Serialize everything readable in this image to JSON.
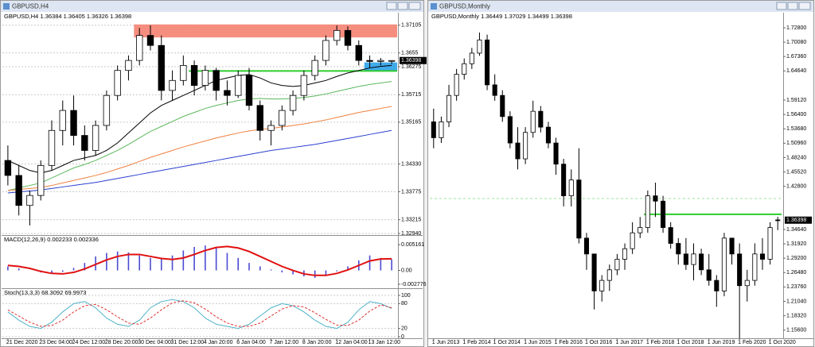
{
  "chart_data": [
    {
      "type": "candlestick",
      "title": "GBPUSD,H4",
      "categories": [
        "21 Dec 2020",
        null,
        null,
        "23 Dec 04:00",
        null,
        null,
        "24 Dec 12:00",
        null,
        null,
        "28 Dec 20:00",
        null,
        null,
        "30 Dec 04:00",
        null,
        null,
        "31 Dec 12:00",
        null,
        null,
        "4 Jan 20:00",
        null,
        null,
        "6 Jan 04:00",
        null,
        null,
        "7 Jan 12:00",
        null,
        null,
        "8 Jan 20:00",
        null,
        null,
        "12 Jan 04:00",
        null,
        null,
        "13 Jan 12:00",
        null,
        null
      ],
      "candles": [
        [
          1.344,
          1.347,
          1.339,
          1.341
        ],
        [
          1.341,
          1.343,
          1.333,
          1.335
        ],
        [
          1.335,
          1.338,
          1.331,
          1.337
        ],
        [
          1.337,
          1.344,
          1.336,
          1.343
        ],
        [
          1.343,
          1.352,
          1.342,
          1.35
        ],
        [
          1.35,
          1.356,
          1.347,
          1.354
        ],
        [
          1.354,
          1.357,
          1.347,
          1.349
        ],
        [
          1.349,
          1.351,
          1.344,
          1.346
        ],
        [
          1.346,
          1.352,
          1.345,
          1.351
        ],
        [
          1.351,
          1.358,
          1.35,
          1.357
        ],
        [
          1.357,
          1.363,
          1.356,
          1.362
        ],
        [
          1.362,
          1.365,
          1.36,
          1.364
        ],
        [
          1.364,
          1.3705,
          1.363,
          1.369
        ],
        [
          1.369,
          1.371,
          1.366,
          1.367
        ],
        [
          1.367,
          1.369,
          1.356,
          1.358
        ],
        [
          1.358,
          1.362,
          1.356,
          1.36
        ],
        [
          1.36,
          1.365,
          1.359,
          1.363
        ],
        [
          1.363,
          1.364,
          1.357,
          1.359
        ],
        [
          1.359,
          1.363,
          1.358,
          1.362
        ],
        [
          1.362,
          1.3625,
          1.356,
          1.358
        ],
        [
          1.358,
          1.36,
          1.355,
          1.357
        ],
        [
          1.357,
          1.362,
          1.3565,
          1.361
        ],
        [
          1.361,
          1.3625,
          1.354,
          1.355
        ],
        [
          1.355,
          1.356,
          1.348,
          1.35
        ],
        [
          1.35,
          1.352,
          1.347,
          1.351
        ],
        [
          1.351,
          1.355,
          1.35,
          1.354
        ],
        [
          1.354,
          1.358,
          1.353,
          1.357
        ],
        [
          1.357,
          1.362,
          1.356,
          1.361
        ],
        [
          1.361,
          1.365,
          1.36,
          1.364
        ],
        [
          1.364,
          1.369,
          1.363,
          1.368
        ],
        [
          1.368,
          1.371,
          1.367,
          1.37
        ],
        [
          1.37,
          1.3708,
          1.366,
          1.367
        ],
        [
          1.367,
          1.368,
          1.363,
          1.364
        ],
        [
          1.364,
          1.365,
          1.3625,
          1.3638
        ],
        [
          1.3638,
          1.3645,
          1.363,
          1.364
        ],
        [
          1.36384,
          1.36405,
          1.36326,
          1.36398
        ]
      ],
      "moving_averages": [
        {
          "color": "#000000",
          "values": [
            1.344,
            1.343,
            1.342,
            1.3415,
            1.342,
            1.343,
            1.344,
            1.3445,
            1.345,
            1.346,
            1.3475,
            1.3495,
            1.3515,
            1.3535,
            1.355,
            1.356,
            1.357,
            1.358,
            1.359,
            1.36,
            1.3605,
            1.361,
            1.3612,
            1.3605,
            1.3595,
            1.359,
            1.3588,
            1.359,
            1.3595,
            1.36,
            1.3608,
            1.3615,
            1.362,
            1.3625,
            1.3628,
            1.363
          ]
        },
        {
          "color": "#5cb85c",
          "values": [
            1.338,
            1.3385,
            1.339,
            1.3395,
            1.3405,
            1.3415,
            1.3425,
            1.3432,
            1.344,
            1.345,
            1.346,
            1.3472,
            1.3485,
            1.3498,
            1.3508,
            1.3518,
            1.3528,
            1.3536,
            1.3544,
            1.355,
            1.3555,
            1.356,
            1.3563,
            1.3564,
            1.3563,
            1.3563,
            1.3564,
            1.3566,
            1.3569,
            1.3573,
            1.3578,
            1.3583,
            1.3588,
            1.3592,
            1.3595,
            1.3598
          ]
        },
        {
          "color": "#f08040",
          "values": [
            1.338,
            1.3382,
            1.3384,
            1.3386,
            1.339,
            1.3395,
            1.34,
            1.3405,
            1.341,
            1.3416,
            1.3423,
            1.343,
            1.3438,
            1.3446,
            1.3453,
            1.346,
            1.3467,
            1.3473,
            1.3479,
            1.3485,
            1.349,
            1.3495,
            1.3499,
            1.3502,
            1.3504,
            1.3507,
            1.351,
            1.3513,
            1.3517,
            1.3521,
            1.3526,
            1.3531,
            1.3536,
            1.354,
            1.3544,
            1.3548
          ]
        },
        {
          "color": "#2b3fd1",
          "values": [
            1.3375,
            1.3377,
            1.3379,
            1.3381,
            1.3384,
            1.3387,
            1.339,
            1.3393,
            1.3396,
            1.34,
            1.3404,
            1.3408,
            1.3412,
            1.3416,
            1.342,
            1.3424,
            1.3428,
            1.3432,
            1.3436,
            1.344,
            1.3444,
            1.3448,
            1.3452,
            1.3456,
            1.346,
            1.3463,
            1.3466,
            1.3469,
            1.3472,
            1.3476,
            1.348,
            1.3484,
            1.3488,
            1.3492,
            1.3496,
            1.35
          ]
        }
      ],
      "zones": [
        {
          "from": 1.3686,
          "to": 1.3712,
          "color": "#f47a6a"
        },
        {
          "from": 1.3619,
          "to": 1.3636,
          "color": "#1e9be8"
        }
      ],
      "levels": [
        {
          "value": 1.3619,
          "color": "#2ecc2e"
        }
      ],
      "ylim": [
        1.3294,
        1.3718
      ],
      "yticks": [
        1.37105,
        1.3655,
        1.36275,
        1.35715,
        1.35165,
        {
          "value": 1.3433,
          "label": "1.34330"
        },
        1.33775,
        1.33215,
        {
          "value": 1.3294,
          "label": "1.32940"
        }
      ],
      "grid": true
    },
    {
      "type": "macd",
      "label": "MACD(12,26,9)",
      "histogram": [
        0.0008,
        0.0004,
        0,
        -0.0004,
        -0.0005,
        -0.0003,
        0.0005,
        0.0015,
        0.0028,
        0.0035,
        0.0038,
        0.0036,
        0.003,
        0.0025,
        0.0024,
        0.003,
        0.004,
        0.0047,
        0.005,
        0.0045,
        0.0035,
        0.0025,
        0.0015,
        0.0008,
        0.0002,
        -0.0004,
        -0.0008,
        -0.0012,
        -0.0015,
        -0.001,
        -0.0002,
        0.0008,
        0.002,
        0.003,
        0.0025,
        0.002233
      ],
      "signal": [
        0.001,
        0.0008,
        0.0004,
        -0.0002,
        -0.0006,
        -0.0007,
        -0.0004,
        0.0003,
        0.0012,
        0.0021,
        0.0028,
        0.0032,
        0.0032,
        0.0028,
        0.0024,
        0.0022,
        0.0025,
        0.0032,
        0.004,
        0.0046,
        0.0048,
        0.0045,
        0.0038,
        0.0028,
        0.0018,
        0.0008,
        0,
        -0.0007,
        -0.001,
        -0.001,
        -0.0006,
        0.0001,
        0.001,
        0.0019,
        0.0023,
        0.002336
      ],
      "histogram_color": "#4b4bd2",
      "signal_color": "#e01010",
      "ylim": [
        -0.0031,
        0.0055
      ],
      "yticks": [
        0.005161,
        {
          "value": 0,
          "label": "0.00"
        },
        -0.002776
      ]
    },
    {
      "type": "stochastic",
      "label": "Stoch(13,3,3)",
      "main": [
        60,
        40,
        25,
        20,
        35,
        60,
        80,
        85,
        70,
        45,
        30,
        25,
        40,
        70,
        85,
        90,
        85,
        70,
        45,
        30,
        25,
        20,
        30,
        50,
        70,
        80,
        75,
        60,
        40,
        25,
        20,
        35,
        65,
        85,
        80,
        68.3092
      ],
      "signal": [
        65,
        50,
        35,
        25,
        27,
        40,
        60,
        75,
        78,
        65,
        48,
        33,
        30,
        45,
        65,
        82,
        87,
        82,
        67,
        48,
        33,
        25,
        25,
        33,
        50,
        67,
        75,
        72,
        58,
        42,
        28,
        27,
        40,
        62,
        77,
        69.9973
      ],
      "main_color": "#4fb3c8",
      "signal_color": "#e03030",
      "ylim": [
        0,
        100
      ],
      "yticks": [
        100,
        80,
        20,
        0
      ]
    },
    {
      "type": "candlestick",
      "title": "GBPUSD,Monthly",
      "categories": [
        "1 Jun 2013",
        null,
        null,
        null,
        "1 Feb 2014",
        null,
        null,
        null,
        "1 Oct 2014",
        null,
        null,
        null,
        "1 Jun 2015",
        null,
        null,
        null,
        "1 Feb 2016",
        null,
        null,
        null,
        "1 Oct 2016",
        null,
        null,
        null,
        "1 Jun 2017",
        null,
        null,
        null,
        "1 Feb 2018",
        null,
        null,
        null,
        "1 Oct 2018",
        null,
        null,
        null,
        "1 Jun 2019",
        null,
        null,
        null,
        "1 Feb 2020",
        null,
        null,
        null,
        "1 Oct 2020",
        null
      ],
      "candles": [
        [
          1.55,
          1.575,
          1.5,
          1.52
        ],
        [
          1.52,
          1.56,
          1.51,
          1.55
        ],
        [
          1.55,
          1.62,
          1.54,
          1.6
        ],
        [
          1.6,
          1.65,
          1.59,
          1.64
        ],
        [
          1.64,
          1.67,
          1.63,
          1.66
        ],
        [
          1.66,
          1.69,
          1.65,
          1.68
        ],
        [
          1.68,
          1.719,
          1.675,
          1.705
        ],
        [
          1.705,
          1.715,
          1.61,
          1.62
        ],
        [
          1.62,
          1.64,
          1.59,
          1.6
        ],
        [
          1.6,
          1.61,
          1.55,
          1.56
        ],
        [
          1.56,
          1.57,
          1.5,
          1.51
        ],
        [
          1.51,
          1.54,
          1.46,
          1.48
        ],
        [
          1.48,
          1.54,
          1.47,
          1.53
        ],
        [
          1.53,
          1.59,
          1.52,
          1.57
        ],
        [
          1.57,
          1.58,
          1.53,
          1.54
        ],
        [
          1.54,
          1.55,
          1.5,
          1.51
        ],
        [
          1.51,
          1.52,
          1.45,
          1.47
        ],
        [
          1.47,
          1.48,
          1.39,
          1.41
        ],
        [
          1.41,
          1.46,
          1.39,
          1.44
        ],
        [
          1.44,
          1.5,
          1.32,
          1.33
        ],
        [
          1.33,
          1.34,
          1.27,
          1.3
        ],
        [
          1.3,
          1.3,
          1.195,
          1.23
        ],
        [
          1.23,
          1.26,
          1.21,
          1.25
        ],
        [
          1.25,
          1.28,
          1.23,
          1.27
        ],
        [
          1.27,
          1.3,
          1.26,
          1.29
        ],
        [
          1.29,
          1.32,
          1.27,
          1.31
        ],
        [
          1.31,
          1.36,
          1.3,
          1.34
        ],
        [
          1.34,
          1.37,
          1.33,
          1.35
        ],
        [
          1.35,
          1.42,
          1.34,
          1.41
        ],
        [
          1.41,
          1.435,
          1.37,
          1.4
        ],
        [
          1.4,
          1.41,
          1.34,
          1.35
        ],
        [
          1.35,
          1.36,
          1.31,
          1.32
        ],
        [
          1.32,
          1.33,
          1.28,
          1.3
        ],
        [
          1.3,
          1.33,
          1.27,
          1.28
        ],
        [
          1.28,
          1.32,
          1.25,
          1.3
        ],
        [
          1.3,
          1.31,
          1.26,
          1.27
        ],
        [
          1.27,
          1.3,
          1.24,
          1.25
        ],
        [
          1.25,
          1.26,
          1.2,
          1.23
        ],
        [
          1.23,
          1.34,
          1.22,
          1.33
        ],
        [
          1.33,
          1.33,
          1.28,
          1.3
        ],
        [
          1.3,
          1.32,
          1.14,
          1.24
        ],
        [
          1.24,
          1.27,
          1.21,
          1.25
        ],
        [
          1.25,
          1.32,
          1.24,
          1.3
        ],
        [
          1.3,
          1.33,
          1.27,
          1.29
        ],
        [
          1.29,
          1.36,
          1.28,
          1.35
        ],
        [
          1.36449,
          1.37029,
          1.34499,
          1.36398
        ]
      ],
      "levels": [
        {
          "value": 1.375,
          "color": "#2ecc2e"
        },
        {
          "value": 1.405,
          "color": "#9be39b",
          "dashed": true
        }
      ],
      "ylim": [
        1.145,
        1.74
      ],
      "yticks": [
        {
          "value": 1.728,
          "label": "1.72800"
        },
        {
          "value": 1.7008,
          "label": "1.70080"
        },
        {
          "value": 1.6736,
          "label": "1.67360"
        },
        {
          "value": 1.6464,
          "label": "1.64640"
        },
        {
          "value": 1.5912,
          "label": "1.59120"
        },
        {
          "value": 1.564,
          "label": "1.56400"
        },
        {
          "value": 1.5368,
          "label": "1.53680"
        },
        {
          "value": 1.5096,
          "label": "1.50960"
        },
        {
          "value": 1.4824,
          "label": "1.48240"
        },
        {
          "value": 1.4552,
          "label": "1.45520"
        },
        {
          "value": 1.428,
          "label": "1.42800"
        },
        {
          "value": 1.3464,
          "label": "1.34640"
        },
        {
          "value": 1.3192,
          "label": "1.31920"
        },
        {
          "value": 1.292,
          "label": "1.29200"
        },
        {
          "value": 1.2648,
          "label": "1.26480"
        },
        {
          "value": 1.2376,
          "label": "1.23760"
        },
        {
          "value": 1.2104,
          "label": "1.21040"
        },
        {
          "value": 1.1832,
          "label": "1.18320"
        },
        {
          "value": 1.156,
          "label": "1.15600"
        }
      ],
      "grid": false
    }
  ]
}
